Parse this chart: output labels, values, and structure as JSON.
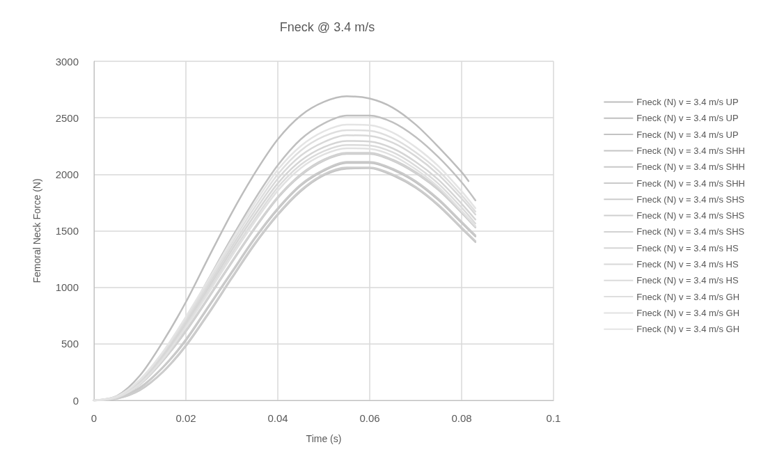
{
  "chart_data": {
    "type": "line",
    "title": "Fneck @ 3.4 m/s",
    "xlabel": "Time (s)",
    "ylabel": "Femoral Neck Force (N)",
    "x": [
      0,
      0.005,
      0.01,
      0.015,
      0.02,
      0.025,
      0.03,
      0.035,
      0.04,
      0.045,
      0.05,
      0.055,
      0.06,
      0.065,
      0.07,
      0.075,
      0.08,
      0.083
    ],
    "xlim": [
      0,
      0.1
    ],
    "xticks": [
      0,
      0.02,
      0.04,
      0.06,
      0.08,
      0.1
    ],
    "ylim": [
      0,
      3000
    ],
    "yticks": [
      0,
      500,
      1000,
      1500,
      2000,
      2500,
      3000
    ],
    "grid": true,
    "legend": "right",
    "marker": "none",
    "line_style": "solid",
    "series": [
      {
        "name": "Fneck (N) v = 3.4 m/s UP",
        "color": "#bdbdbd",
        "x": [
          0,
          0.005,
          0.01,
          0.015,
          0.02,
          0.025,
          0.03,
          0.035,
          0.04,
          0.045,
          0.05,
          0.055,
          0.06,
          0.065,
          0.07,
          0.075,
          0.08,
          0.0815
        ],
        "values": [
          0,
          40,
          220,
          520,
          870,
          1270,
          1660,
          2010,
          2310,
          2520,
          2640,
          2690,
          2670,
          2590,
          2440,
          2240,
          2020,
          1940
        ]
      },
      {
        "name": "Fneck (N) v = 3.4 m/s UP",
        "color": "#c0c0c0",
        "values": [
          0,
          30,
          170,
          420,
          720,
          1080,
          1440,
          1780,
          2080,
          2310,
          2450,
          2520,
          2520,
          2460,
          2330,
          2150,
          1930,
          1770
        ]
      },
      {
        "name": "Fneck (N) v = 3.4 m/s UP",
        "color": "#c3c3c3",
        "values": [
          0,
          20,
          110,
          290,
          530,
          830,
          1130,
          1430,
          1690,
          1900,
          2030,
          2100,
          2100,
          2040,
          1930,
          1770,
          1570,
          1450
        ]
      },
      {
        "name": "Fneck (N) v = 3.4 m/s SHH",
        "color": "#c5c5c5",
        "values": [
          0,
          15,
          90,
          250,
          480,
          770,
          1080,
          1380,
          1640,
          1850,
          1990,
          2050,
          2055,
          1990,
          1880,
          1720,
          1520,
          1400
        ]
      },
      {
        "name": "Fneck (N) v = 3.4 m/s SHH",
        "color": "#c8c8c8",
        "values": [
          0,
          25,
          140,
          350,
          610,
          910,
          1220,
          1520,
          1790,
          1990,
          2120,
          2180,
          2180,
          2120,
          2010,
          1860,
          1660,
          1530
        ]
      },
      {
        "name": "Fneck (N) v = 3.4 m/s SHH",
        "color": "#cacaca",
        "values": [
          0,
          20,
          115,
          295,
          540,
          840,
          1140,
          1440,
          1700,
          1910,
          2040,
          2110,
          2110,
          2050,
          1940,
          1780,
          1580,
          1460
        ]
      },
      {
        "name": "Fneck (N) v = 3.4 m/s SHS",
        "color": "#cdcdcd",
        "values": [
          0,
          15,
          95,
          255,
          490,
          780,
          1090,
          1390,
          1650,
          1860,
          2000,
          2060,
          2060,
          2000,
          1890,
          1730,
          1530,
          1410
        ]
      },
      {
        "name": "Fneck (N) v = 3.4 m/s SHS",
        "color": "#cfcfcf",
        "values": [
          0,
          25,
          145,
          355,
          620,
          920,
          1230,
          1530,
          1800,
          2000,
          2130,
          2190,
          2190,
          2130,
          2020,
          1870,
          1670,
          1540
        ]
      },
      {
        "name": "Fneck (N) v = 3.4 m/s SHS",
        "color": "#d2d2d2",
        "values": [
          0,
          25,
          140,
          350,
          615,
          915,
          1225,
          1525,
          1795,
          1995,
          2125,
          2185,
          2185,
          2125,
          2015,
          1865,
          1665,
          1535
        ]
      },
      {
        "name": "Fneck (N) v = 3.4 m/s HS",
        "color": "#d5d5d5",
        "values": [
          0,
          30,
          160,
          390,
          680,
          1000,
          1330,
          1640,
          1920,
          2120,
          2240,
          2295,
          2290,
          2230,
          2110,
          1950,
          1740,
          1600
        ]
      },
      {
        "name": "Fneck (N) v = 3.4 m/s HS",
        "color": "#d8d8d8",
        "values": [
          0,
          32,
          170,
          405,
          700,
          1025,
          1360,
          1675,
          1960,
          2165,
          2285,
          2345,
          2340,
          2280,
          2160,
          1995,
          1785,
          1645
        ]
      },
      {
        "name": "Fneck (N) v = 3.4 m/s HS",
        "color": "#dbdbdb",
        "values": [
          0,
          28,
          150,
          375,
          660,
          975,
          1300,
          1605,
          1885,
          2085,
          2205,
          2260,
          2255,
          2195,
          2075,
          1915,
          1705,
          1565
        ]
      },
      {
        "name": "Fneck (N) v = 3.4 m/s GH",
        "color": "#dedede",
        "values": [
          0,
          34,
          178,
          420,
          720,
          1050,
          1390,
          1710,
          2000,
          2210,
          2335,
          2390,
          2385,
          2320,
          2195,
          2030,
          1815,
          1670
        ]
      },
      {
        "name": "Fneck (N) v = 3.4 m/s GH",
        "color": "#e1e1e1",
        "values": [
          0,
          26,
          145,
          365,
          645,
          955,
          1275,
          1580,
          1855,
          2055,
          2175,
          2230,
          2225,
          2165,
          2045,
          1885,
          1675,
          1540
        ]
      },
      {
        "name": "Fneck (N) v = 3.4 m/s GH",
        "color": "#e4e4e4",
        "values": [
          0,
          36,
          185,
          430,
          740,
          1075,
          1420,
          1745,
          2040,
          2250,
          2380,
          2440,
          2435,
          2370,
          2240,
          2070,
          1850,
          1700
        ]
      }
    ]
  }
}
